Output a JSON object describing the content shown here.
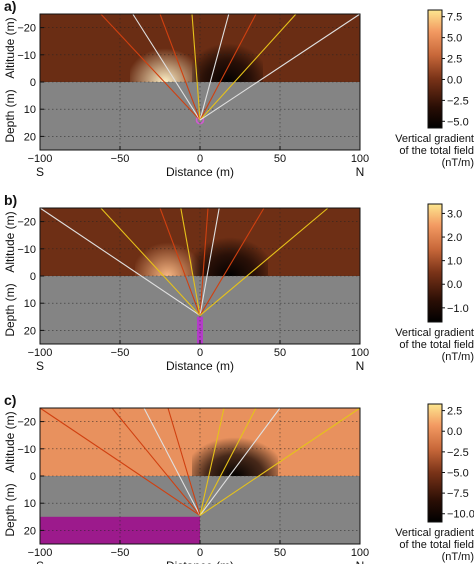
{
  "chart_data": [
    {
      "type": "heatmap",
      "panel_label": "a)",
      "xlabel": "Distance (m)",
      "ylabel_top": "Altitude (m)",
      "ylabel_bottom": "Depth (m)",
      "x_ticks": [
        "−100",
        "−50",
        "0",
        "50",
        "100"
      ],
      "y_ticks_altitude": [
        "−20",
        "−10",
        "0"
      ],
      "y_ticks_depth": [
        "10",
        "20"
      ],
      "dir_left": "S",
      "dir_right": "N",
      "xlim": [
        -100,
        100
      ],
      "ylim": [
        -25,
        25
      ],
      "grid": true,
      "source": {
        "shape": "point",
        "x": 0,
        "depth": 14
      },
      "rays": [
        {
          "color": "#d04010",
          "x_end": -62
        },
        {
          "color": "#e0e0e0",
          "x_end": -42
        },
        {
          "color": "#d04010",
          "x_end": -25
        },
        {
          "color": "#e6c21a",
          "x_end": -5
        },
        {
          "color": "#e0e0e0",
          "x_end": 18
        },
        {
          "color": "#d04010",
          "x_end": 35
        },
        {
          "color": "#e6c21a",
          "x_end": 60
        },
        {
          "color": "#e0e0e0",
          "x_end": 100
        }
      ],
      "colorbar": {
        "ticks": [
          "7.5",
          "5.0",
          "2.5",
          "0.0",
          "−2.5",
          "−5.0"
        ],
        "tick_values": [
          7.5,
          5.0,
          2.5,
          0.0,
          -2.5,
          -5.0
        ],
        "range": [
          -5.8,
          8.3
        ],
        "label": [
          "Vertical gradient",
          "of the total field",
          "(nT/m)"
        ]
      }
    },
    {
      "type": "heatmap",
      "panel_label": "b)",
      "xlabel": "Distance (m)",
      "ylabel_top": "Altitude (m)",
      "ylabel_bottom": "Depth (m)",
      "x_ticks": [
        "−100",
        "−50",
        "0",
        "50",
        "100"
      ],
      "y_ticks_altitude": [
        "−20",
        "−10",
        "0"
      ],
      "y_ticks_depth": [
        "10",
        "20"
      ],
      "dir_left": "S",
      "dir_right": "N",
      "xlim": [
        -100,
        100
      ],
      "ylim": [
        -25,
        25
      ],
      "grid": true,
      "source": {
        "shape": "column",
        "x": 0,
        "depth_top": 15,
        "depth_bottom": 25
      },
      "rays": [
        {
          "color": "#e0e0e0",
          "x_end": -100
        },
        {
          "color": "#e6c21a",
          "x_end": -62
        },
        {
          "color": "#d04010",
          "x_end": -25
        },
        {
          "color": "#e6c21a",
          "x_end": -12
        },
        {
          "color": "#d04010",
          "x_end": 5
        },
        {
          "color": "#e0e0e0",
          "x_end": 12
        },
        {
          "color": "#d04010",
          "x_end": 40
        },
        {
          "color": "#e6c21a",
          "x_end": 80
        }
      ],
      "colorbar": {
        "ticks": [
          "3.0",
          "2.0",
          "1.0",
          "0.0",
          "−1.0"
        ],
        "tick_values": [
          3.0,
          2.0,
          1.0,
          0.0,
          -1.0
        ],
        "range": [
          -1.6,
          3.4
        ],
        "label": [
          "Vertical gradient",
          "of the total field",
          "(nT/m)"
        ]
      }
    },
    {
      "type": "heatmap",
      "panel_label": "c)",
      "xlabel": "Distance (m)",
      "ylabel_top": "Altitude (m)",
      "ylabel_bottom": "Depth (m)",
      "x_ticks": [
        "−100",
        "−50",
        "0",
        "50",
        "100"
      ],
      "y_ticks_altitude": [
        "−20",
        "−10",
        "0"
      ],
      "y_ticks_depth": [
        "10",
        "20"
      ],
      "dir_left": "S",
      "dir_right": "N",
      "xlim": [
        -100,
        100
      ],
      "ylim": [
        -25,
        25
      ],
      "grid": true,
      "source": {
        "shape": "slab",
        "x_start": -100,
        "x_end": 0,
        "depth_top": 15,
        "depth_bottom": 25
      },
      "rays": [
        {
          "color": "#d04010",
          "x_end": -100
        },
        {
          "color": "#d04010",
          "x_end": -55
        },
        {
          "color": "#e0e0e0",
          "x_end": -35
        },
        {
          "color": "#d04010",
          "x_end": -20
        },
        {
          "color": "#e6c21a",
          "x_end": 15
        },
        {
          "color": "#e6c21a",
          "x_end": 35
        },
        {
          "color": "#e0e0e0",
          "x_end": 50
        },
        {
          "color": "#e6c21a",
          "x_end": 100
        }
      ],
      "colorbar": {
        "ticks": [
          "2.5",
          "0.0",
          "−2.5",
          "−5.0",
          "−7.5",
          "−10.0"
        ],
        "tick_values": [
          2.5,
          0.0,
          -2.5,
          -5.0,
          -7.5,
          -10.0
        ],
        "range": [
          -11.0,
          3.3
        ],
        "label": [
          "Vertical gradient",
          "of the total field",
          "(nT/m)"
        ]
      }
    }
  ]
}
